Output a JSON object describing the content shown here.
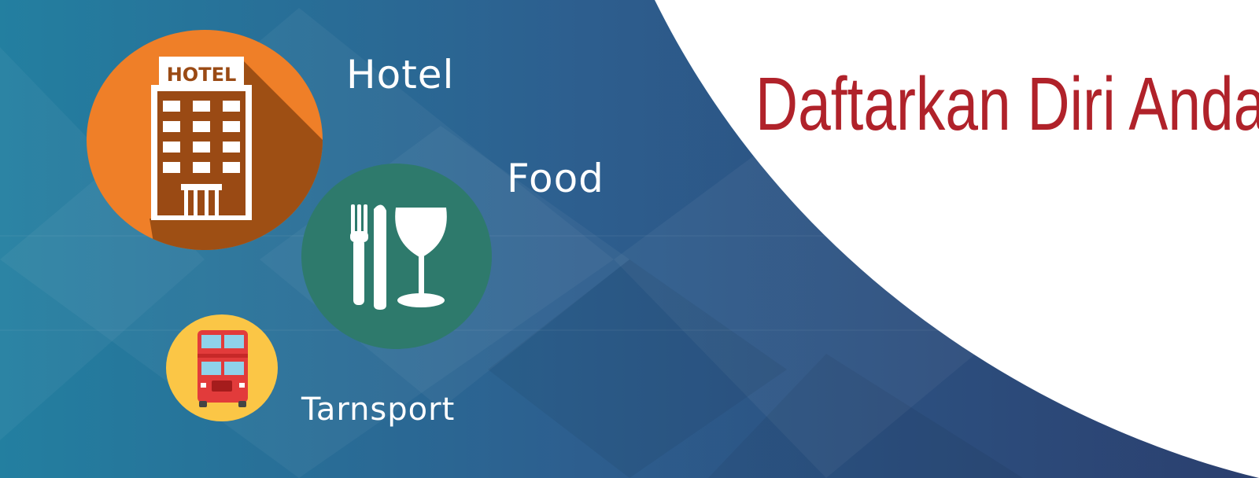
{
  "banner": {
    "headline": "Daftarkan Diri Anda !",
    "colors": {
      "background_left": "#237fa0",
      "background_right": "#2b3f6e",
      "panel": "#ffffff",
      "headline": "#b0222a",
      "hotel_circle": "#ef7f28",
      "food_circle": "#2e7a6c",
      "transport_circle": "#fbc646"
    },
    "services": [
      {
        "label": "Hotel",
        "icon": "hotel-building-icon",
        "sign_text": "HOTEL"
      },
      {
        "label": "Food",
        "icon": "fork-knife-glass-icon"
      },
      {
        "label": "Tarnsport",
        "icon": "double-decker-bus-icon"
      }
    ]
  }
}
